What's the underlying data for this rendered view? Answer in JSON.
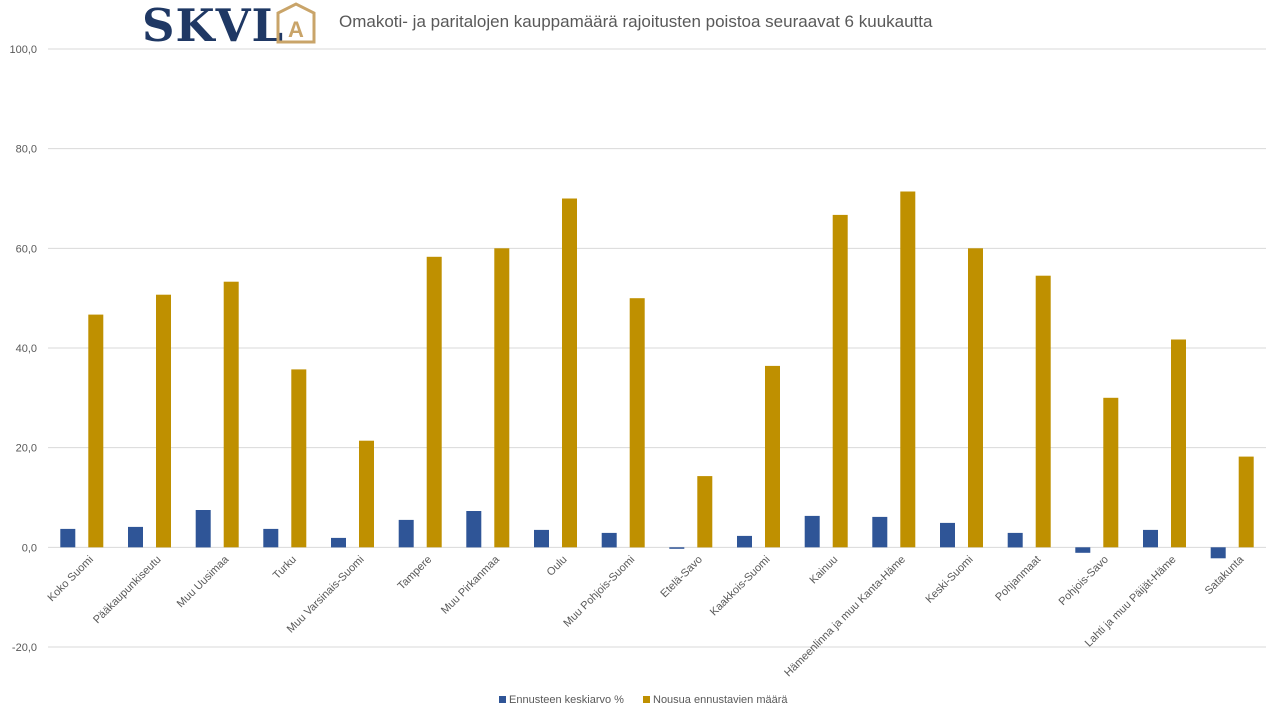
{
  "logo": {
    "text": "SKVL",
    "letter": "A",
    "text_color": "#1f3864",
    "accent_color": "#c9a469"
  },
  "chart_data": {
    "type": "bar",
    "title": "Omakoti- ja paritalojen kauppamäärä rajoitusten poistoa seuraavat 6 kuukautta",
    "categories": [
      "Koko Suomi",
      "Pääkaupunkiseutu",
      "Muu Uusimaa",
      "Turku",
      "Muu Varsinais-Suomi",
      "Tampere",
      "Muu Pirkanmaa",
      "Oulu",
      "Muu Pohjois-Suomi",
      "Etelä-Savo",
      "Kaakkois-Suomi",
      "Kainuu",
      "Hämeenlinna ja muu Kanta-Häme",
      "Keski-Suomi",
      "Pohjanmaat",
      "Pohjois-Savo",
      "Lahti ja muu Päijät-Häme",
      "Satakunta"
    ],
    "series": [
      {
        "name": "Ennusteen keskiarvo %",
        "color": "#2f5597",
        "values": [
          3.7,
          4.1,
          7.5,
          3.7,
          1.9,
          5.5,
          7.3,
          3.5,
          2.9,
          -0.3,
          2.3,
          6.3,
          6.1,
          4.9,
          2.9,
          -1.1,
          3.5,
          -2.2
        ]
      },
      {
        "name": "Nousua ennustavien määrä",
        "color": "#bf9000",
        "values": [
          46.7,
          50.7,
          53.3,
          35.7,
          21.4,
          58.3,
          60.0,
          70.0,
          50.0,
          14.3,
          36.4,
          66.7,
          71.4,
          60.0,
          54.5,
          30.0,
          41.7,
          18.2
        ]
      }
    ],
    "ylim": [
      -20,
      100
    ],
    "yticks": [
      "-20,0",
      "0,0",
      "20,0",
      "40,0",
      "60,0",
      "80,0",
      "100,0"
    ],
    "ytick_values": [
      -20,
      0,
      20,
      40,
      60,
      80,
      100
    ],
    "grid": true,
    "legend_position": "bottom"
  }
}
